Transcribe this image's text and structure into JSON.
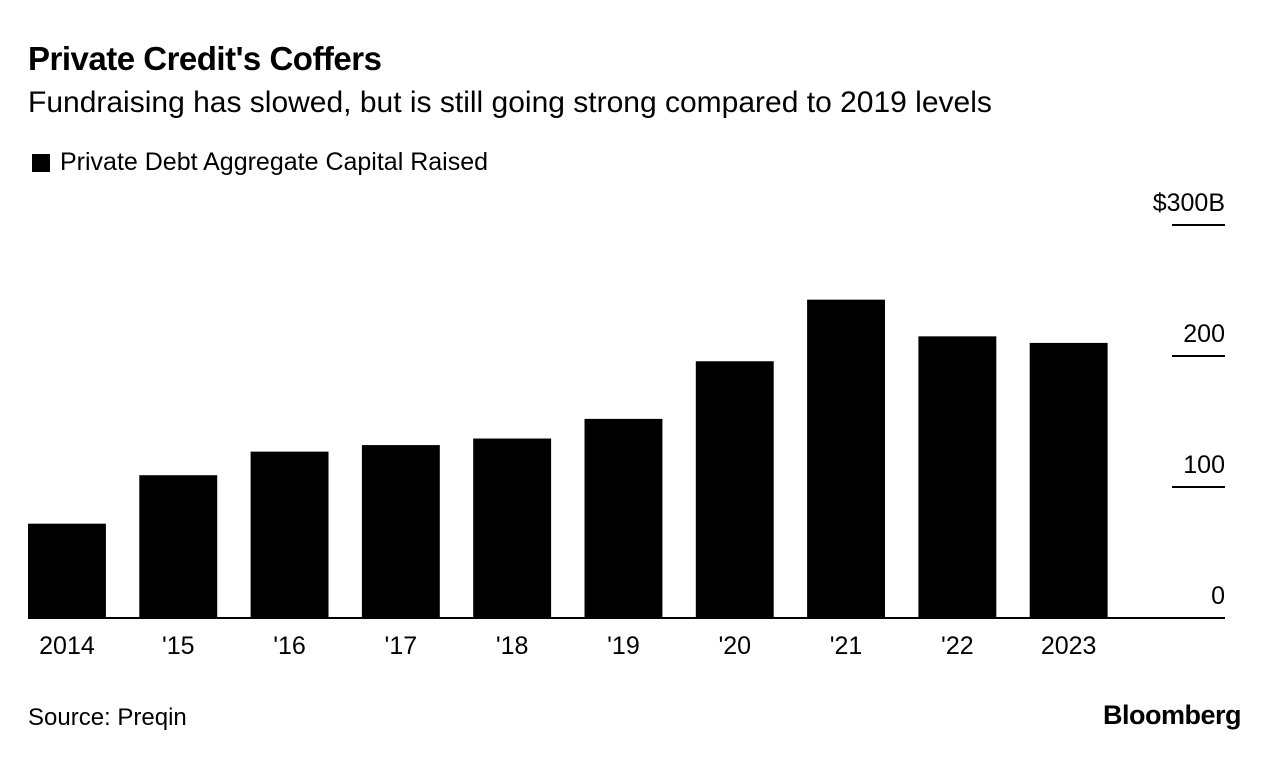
{
  "title": "Private Credit's Coffers",
  "subtitle": "Fundraising has slowed, but is still going strong compared to 2019 levels",
  "legend_label": "Private Debt Aggregate Capital Raised",
  "source": "Source: Preqin",
  "brand": "Bloomberg",
  "colors": {
    "bar": "#000000",
    "axis": "#000000",
    "background": "#ffffff"
  },
  "chart_data": {
    "type": "bar",
    "title": "Private Credit's Coffers",
    "subtitle": "Fundraising has slowed, but is still going strong compared to 2019 levels",
    "xlabel": "",
    "ylabel": "",
    "categories": [
      "2014",
      "'15",
      "'16",
      "'17",
      "'18",
      "'19",
      "'20",
      "'21",
      "'22",
      "2023"
    ],
    "series": [
      {
        "name": "Private Debt Aggregate Capital Raised",
        "values": [
          72,
          109,
          127,
          132,
          137,
          152,
          196,
          243,
          215,
          210
        ]
      }
    ],
    "ylim": [
      0,
      300
    ],
    "yticks": [
      {
        "value": 0,
        "label": "0"
      },
      {
        "value": 100,
        "label": "100"
      },
      {
        "value": 200,
        "label": "200"
      },
      {
        "value": 300,
        "label": "$300B"
      }
    ],
    "y_axis_side": "right",
    "grid": false,
    "legend_position": "top-left"
  }
}
